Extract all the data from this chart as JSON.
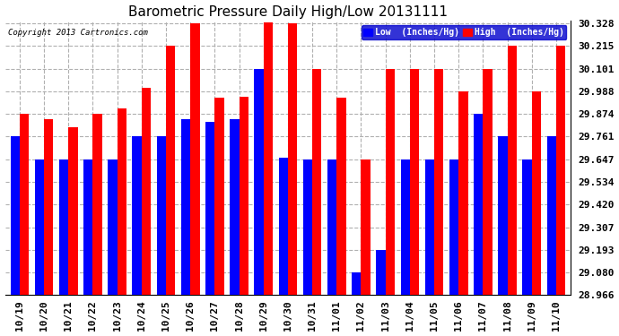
{
  "title": "Barometric Pressure Daily High/Low 20131111",
  "copyright": "Copyright 2013 Cartronics.com",
  "legend_low": "Low  (Inches/Hg)",
  "legend_high": "High  (Inches/Hg)",
  "categories": [
    "10/19",
    "10/20",
    "10/21",
    "10/22",
    "10/23",
    "10/24",
    "10/25",
    "10/26",
    "10/27",
    "10/28",
    "10/29",
    "10/30",
    "10/31",
    "11/01",
    "11/02",
    "11/03",
    "11/04",
    "11/05",
    "11/06",
    "11/07",
    "11/08",
    "11/09",
    "11/10"
  ],
  "high_values": [
    29.874,
    29.847,
    29.808,
    29.874,
    29.901,
    30.005,
    30.215,
    30.328,
    29.954,
    29.961,
    30.335,
    30.328,
    30.101,
    29.954,
    29.647,
    30.101,
    30.101,
    30.101,
    29.988,
    30.101,
    30.215,
    29.988,
    30.215
  ],
  "low_values": [
    29.761,
    29.647,
    29.647,
    29.647,
    29.647,
    29.761,
    29.761,
    29.847,
    29.834,
    29.847,
    30.101,
    29.654,
    29.647,
    29.647,
    29.08,
    29.193,
    29.647,
    29.647,
    29.647,
    29.874,
    29.761,
    29.647,
    29.761
  ],
  "ylim_min": 28.966,
  "ylim_max": 30.342,
  "yticks": [
    28.966,
    29.08,
    29.193,
    29.307,
    29.42,
    29.534,
    29.647,
    29.761,
    29.874,
    29.988,
    30.101,
    30.215,
    30.328
  ],
  "background_color": "#ffffff",
  "bar_color_low": "#0000ff",
  "bar_color_high": "#ff0000",
  "grid_color": "#b0b0b0",
  "title_fontsize": 11,
  "tick_fontsize": 8,
  "bar_width": 0.38
}
